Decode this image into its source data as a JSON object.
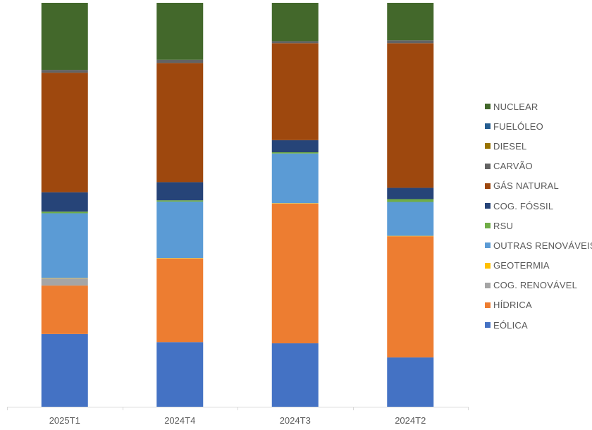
{
  "chart_data": {
    "type": "bar",
    "stacked": true,
    "normalized": true,
    "categories": [
      "2025T1",
      "2024T4",
      "2024T3",
      "2024T2"
    ],
    "ylim": [
      0,
      100
    ],
    "grid": false,
    "legend_position": "right",
    "series": [
      {
        "name": "EÓLICA",
        "color": "#4472C4",
        "values": [
          18,
          16,
          15.7,
          12.2
        ]
      },
      {
        "name": "HÍDRICA",
        "color": "#ED7D31",
        "values": [
          12,
          20.7,
          34.6,
          30
        ]
      },
      {
        "name": "COG. RENOVÁVEL",
        "color": "#A5A5A5",
        "values": [
          1.8,
          0,
          0,
          0
        ]
      },
      {
        "name": "GEOTERMIA",
        "color": "#FFC000",
        "values": [
          0.1,
          0.1,
          0.1,
          0.1
        ]
      },
      {
        "name": "OUTRAS RENOVÁVEIS",
        "color": "#5B9BD5",
        "values": [
          16,
          14,
          12.3,
          8.4
        ]
      },
      {
        "name": "RSU",
        "color": "#70AD47",
        "values": [
          0.4,
          0.3,
          0.3,
          0.7
        ]
      },
      {
        "name": "COG. FÓSSIL",
        "color": "#264478",
        "values": [
          4.8,
          4.5,
          3,
          2.8
        ]
      },
      {
        "name": "GÁS NATURAL",
        "color": "#9E480E",
        "values": [
          29.6,
          29.5,
          24,
          35.8
        ]
      },
      {
        "name": "CARVÃO",
        "color": "#636363",
        "values": [
          0.7,
          0.8,
          0.5,
          0.7
        ]
      },
      {
        "name": "DIESEL",
        "color": "#997300",
        "values": [
          0,
          0,
          0,
          0
        ]
      },
      {
        "name": "FUELÓLEO",
        "color": "#255E91",
        "values": [
          0,
          0,
          0,
          0
        ]
      },
      {
        "name": "NUCLEAR",
        "color": "#43682B",
        "values": [
          16.6,
          14.1,
          9.5,
          9.3
        ]
      }
    ]
  }
}
